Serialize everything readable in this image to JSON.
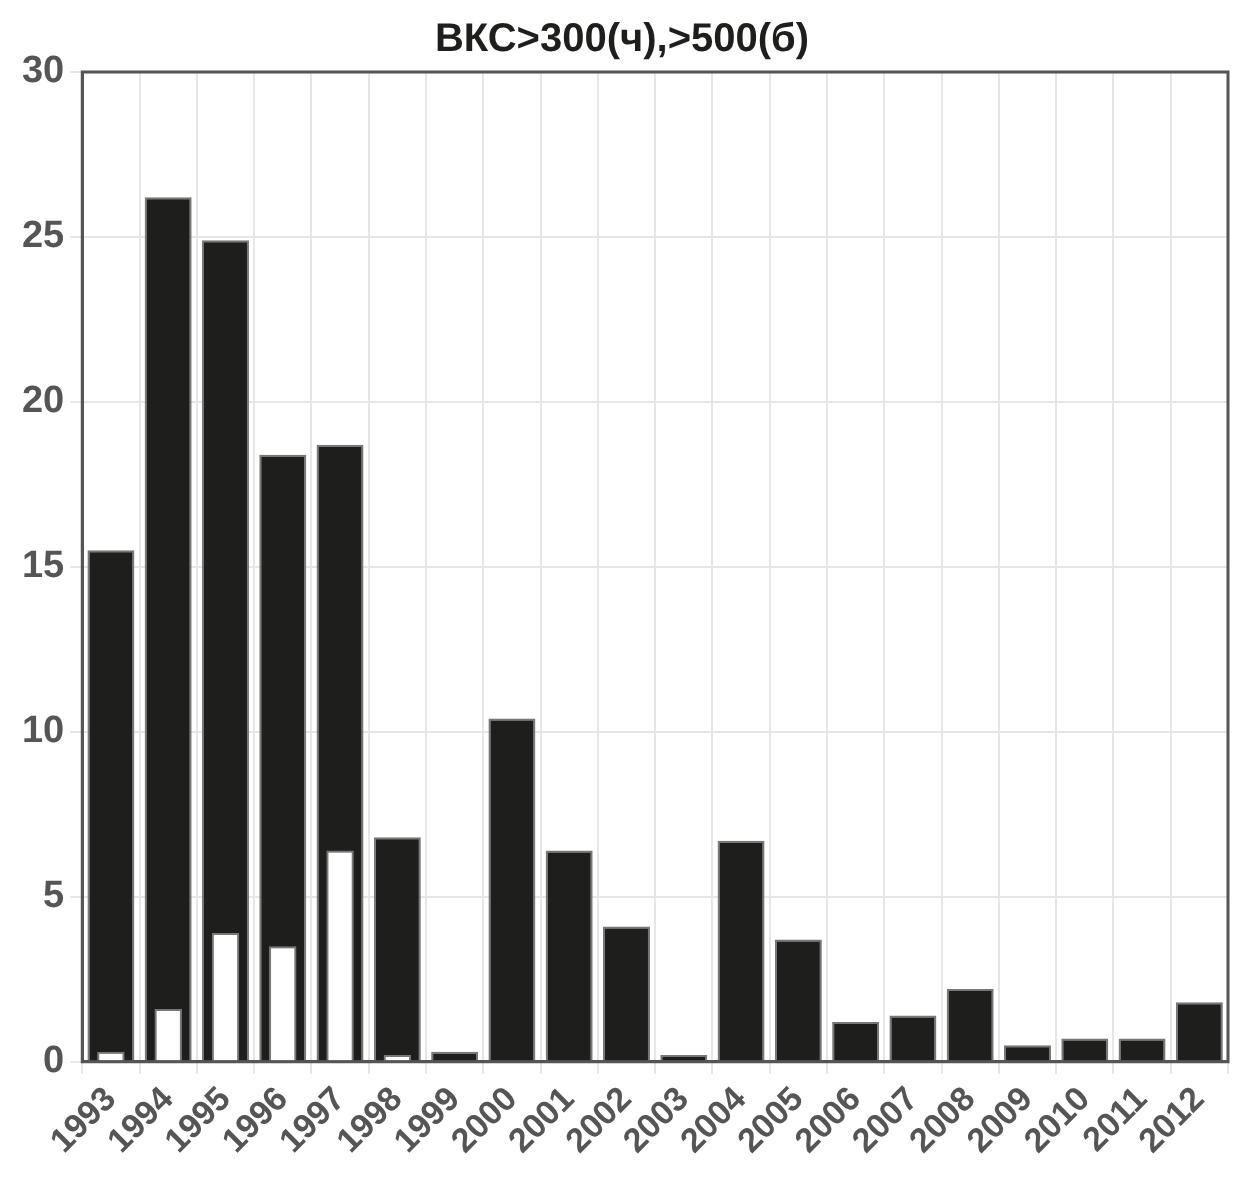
{
  "chart_data": {
    "type": "bar",
    "title": "ВКС>300(ч),>500(б)",
    "categories": [
      "1993",
      "1994",
      "1995",
      "1996",
      "1997",
      "1998",
      "1999",
      "2000",
      "2001",
      "2002",
      "2003",
      "2004",
      "2005",
      "2006",
      "2007",
      "2008",
      "2009",
      "2010",
      "2011",
      "2012"
    ],
    "series": [
      {
        "color": "#1e1e1c",
        "values": [
          15.5,
          26.2,
          24.9,
          18.4,
          18.7,
          6.8,
          0.3,
          10.4,
          6.4,
          4.1,
          0.2,
          6.7,
          3.7,
          1.2,
          1.4,
          2.2,
          0.5,
          0.7,
          0.7,
          1.8
        ]
      },
      {
        "color": "#ffffff",
        "values": [
          0.3,
          1.6,
          3.9,
          3.5,
          6.4,
          0.2,
          null,
          null,
          null,
          null,
          null,
          null,
          null,
          null,
          null,
          null,
          null,
          null,
          null,
          null
        ]
      }
    ],
    "ylim": [
      0,
      30
    ],
    "yticks": [
      0,
      5,
      10,
      15,
      20,
      25,
      30
    ],
    "grid": true,
    "legend": false
  }
}
